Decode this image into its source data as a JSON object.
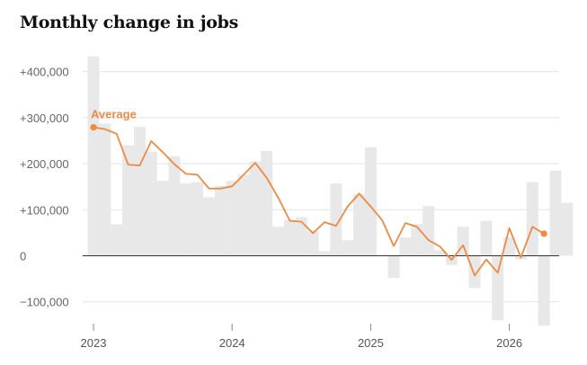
{
  "title": "Monthly change in jobs",
  "colors": {
    "bar": "#e8e8e8",
    "line": "#ee8a44",
    "grid": "#e2e2e2",
    "zero": "#333333"
  },
  "chart_data": {
    "type": "bar",
    "title": "Monthly change in jobs",
    "xlabel": "",
    "ylabel": "",
    "ylim": [
      -150000,
      450000
    ],
    "grid": true,
    "y_ticks": [
      "+400,000",
      "+300,000",
      "+200,000",
      "+100,000",
      "0",
      "−100,000"
    ],
    "y_tick_values": [
      400000,
      300000,
      200000,
      100000,
      0,
      -100000
    ],
    "x_ticks": [
      "2023",
      "2024",
      "2025",
      "2026"
    ],
    "x_tick_values": [
      0,
      12,
      24,
      36
    ],
    "series": [
      {
        "kind": "bar",
        "values": [
          433000,
          287000,
          68000,
          240000,
          280000,
          226000,
          163000,
          216000,
          157000,
          160000,
          127000,
          152000,
          163000,
          176000,
          205000,
          228000,
          63000,
          78000,
          84000,
          54000,
          10000,
          157000,
          34000,
          134000,
          236000,
          0,
          -48000,
          40000,
          69000,
          108000,
          12000,
          -20000,
          63000,
          -70000,
          76000,
          -140000,
          40000,
          -8000,
          160000,
          -152000,
          185000,
          115000
        ]
      },
      {
        "name": "Average",
        "kind": "line",
        "values": [
          279000,
          275000,
          265000,
          198000,
          196000,
          249000,
          225000,
          199000,
          178000,
          176000,
          146000,
          146000,
          151000,
          176000,
          202000,
          169000,
          126000,
          76000,
          74000,
          49000,
          73000,
          65000,
          107000,
          135000,
          107000,
          77000,
          21000,
          71000,
          63000,
          34000,
          20000,
          -9000,
          23000,
          -43000,
          -8000,
          -37000,
          60000,
          -4000,
          63000,
          48000
        ]
      }
    ]
  }
}
